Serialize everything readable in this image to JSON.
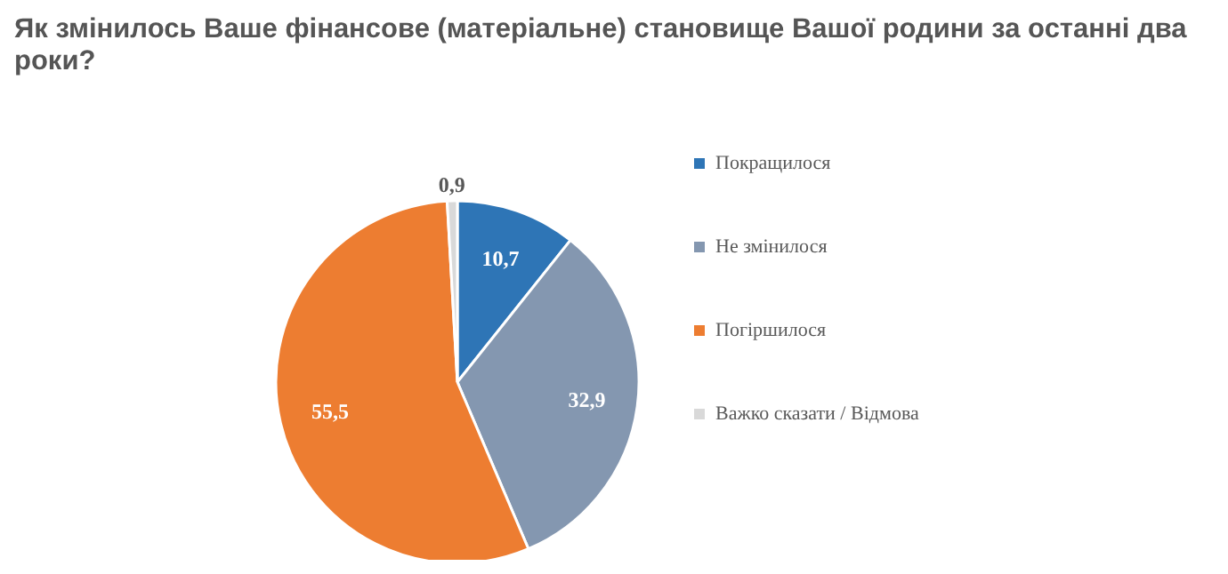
{
  "chart_data": {
    "type": "pie",
    "title": "Як змінилось Ваше фінансове (матеріальне) становище Вашої родини за останні два роки?",
    "categories": [
      "Покращилося",
      "Не змінилося",
      "Погіршилося",
      "Важко сказати / Відмова"
    ],
    "values": [
      10.7,
      32.9,
      55.5,
      0.9
    ],
    "colors": [
      "#2e75b6",
      "#8497b0",
      "#ed7d31",
      "#d9d9d9"
    ],
    "value_labels": [
      "10,7",
      "32,9",
      "55,5",
      "0,9"
    ],
    "legend": "right"
  }
}
